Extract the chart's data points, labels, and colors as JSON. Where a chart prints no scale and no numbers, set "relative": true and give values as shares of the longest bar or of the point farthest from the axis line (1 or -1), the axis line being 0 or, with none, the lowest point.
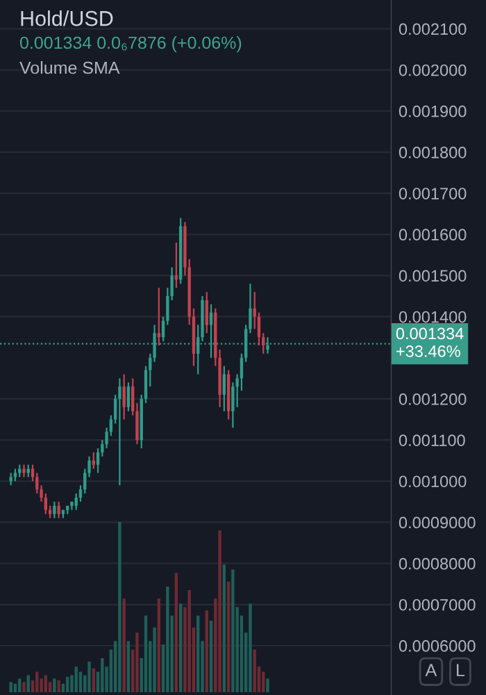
{
  "chart_data": [
    {
      "type": "candlestick",
      "title": "Hold/USD",
      "subtitle": "0.001334 0.0₆7876 (+0.06%)",
      "annotations": [
        "Volume SMA",
        "A",
        "L"
      ],
      "categories": [
        null,
        null,
        null,
        null,
        null,
        null,
        null,
        null,
        null,
        null,
        null,
        null,
        null,
        null,
        null,
        null,
        null,
        null,
        null,
        null,
        null,
        null,
        null,
        null,
        null,
        null,
        null,
        null,
        null,
        null,
        null,
        null,
        null,
        null,
        null,
        null,
        null,
        null,
        null,
        null,
        null,
        null,
        null,
        null,
        null,
        null,
        null,
        null,
        null,
        null,
        null,
        null,
        null,
        null,
        null,
        null,
        null,
        null,
        null,
        null,
        null,
        null,
        null,
        null,
        null,
        null,
        null,
        null,
        null,
        null,
        null,
        null,
        null,
        null,
        null,
        null,
        null,
        null,
        null,
        null,
        null,
        null,
        null,
        null,
        null,
        null,
        null,
        null,
        null,
        null
      ],
      "ohlc": [
        null,
        null,
        [
          0.001,
          0.00102,
          0.00099,
          0.00101
        ],
        [
          0.00101,
          0.00103,
          0.001,
          0.00102
        ],
        [
          0.00102,
          0.00104,
          0.00101,
          0.00103
        ],
        [
          0.00103,
          0.00104,
          0.00101,
          0.00102
        ],
        [
          0.00102,
          0.00104,
          0.00101,
          0.00103
        ],
        [
          0.00103,
          0.00104,
          0.001,
          0.00101
        ],
        [
          0.00101,
          0.00102,
          0.00097,
          0.00098
        ],
        [
          0.00098,
          0.00099,
          0.00095,
          0.00096
        ],
        [
          0.00096,
          0.00097,
          0.00092,
          0.00093
        ],
        [
          0.00093,
          0.00094,
          0.00091,
          0.00092
        ],
        [
          0.00092,
          0.00095,
          0.00091,
          0.00094
        ],
        [
          0.00094,
          0.00095,
          0.00091,
          0.00092
        ],
        [
          0.00092,
          0.00093,
          0.00091,
          0.00093
        ],
        [
          0.00093,
          0.00094,
          0.00092,
          0.00094
        ],
        [
          0.00094,
          0.00095,
          0.00093,
          0.00095
        ],
        [
          0.00094,
          0.00097,
          0.00093,
          0.00096
        ],
        [
          0.00096,
          0.00099,
          0.00095,
          0.00098
        ],
        [
          0.00098,
          0.00103,
          0.00097,
          0.00102
        ],
        [
          0.00102,
          0.00106,
          0.00101,
          0.00105
        ],
        [
          0.00105,
          0.00107,
          0.00103,
          0.00104
        ],
        [
          0.00104,
          0.00108,
          0.00102,
          0.00107
        ],
        [
          0.00107,
          0.0011,
          0.00106,
          0.00109
        ],
        [
          0.00109,
          0.00113,
          0.00108,
          0.00112
        ],
        [
          0.00112,
          0.00116,
          0.00111,
          0.00115
        ],
        [
          0.00115,
          0.00121,
          0.00114,
          0.0012
        ],
        [
          0.0012,
          0.00125,
          0.00099,
          0.00123
        ],
        [
          0.00123,
          0.00126,
          0.00115,
          0.00118
        ],
        [
          0.00118,
          0.00124,
          0.00117,
          0.00123
        ],
        [
          0.00123,
          0.00125,
          0.00116,
          0.00117
        ],
        [
          0.00117,
          0.00119,
          0.00109,
          0.0011
        ],
        [
          0.0011,
          0.00121,
          0.00108,
          0.0012
        ],
        [
          0.0012,
          0.00128,
          0.00119,
          0.00127
        ],
        [
          0.00127,
          0.00131,
          0.00123,
          0.0013
        ],
        [
          0.0013,
          0.00138,
          0.00129,
          0.00136
        ],
        [
          0.00136,
          0.00147,
          0.00133,
          0.00135
        ],
        [
          0.00135,
          0.0014,
          0.00134,
          0.00139
        ],
        [
          0.00139,
          0.00147,
          0.00138,
          0.00145
        ],
        [
          0.00145,
          0.00152,
          0.00144,
          0.0015
        ],
        [
          0.0015,
          0.00158,
          0.00147,
          0.00149
        ],
        [
          0.00149,
          0.00164,
          0.00148,
          0.00162
        ],
        [
          0.00162,
          0.00163,
          0.0015,
          0.00152
        ],
        [
          0.00152,
          0.00154,
          0.00138,
          0.0014
        ],
        [
          0.0014,
          0.00142,
          0.00128,
          0.00131
        ],
        [
          0.00131,
          0.00138,
          0.00126,
          0.00135
        ],
        [
          0.00135,
          0.00145,
          0.00134,
          0.00144
        ],
        [
          0.00144,
          0.00146,
          0.00136,
          0.00138
        ],
        [
          0.00138,
          0.00143,
          0.0013,
          0.00141
        ],
        [
          0.00141,
          0.00142,
          0.00128,
          0.0013
        ],
        [
          0.0013,
          0.00132,
          0.00118,
          0.00121
        ],
        [
          0.00121,
          0.00128,
          0.00117,
          0.00126
        ],
        [
          0.00126,
          0.00127,
          0.00115,
          0.00117
        ],
        [
          0.00117,
          0.00124,
          0.00113,
          0.00123
        ],
        [
          0.00123,
          0.00126,
          0.00118,
          0.00125
        ],
        [
          0.00125,
          0.00131,
          0.00122,
          0.0013
        ],
        [
          0.0013,
          0.00138,
          0.00129,
          0.00137
        ],
        [
          0.00137,
          0.00148,
          0.00136,
          0.00142
        ],
        [
          0.00142,
          0.00146,
          0.00137,
          0.0014
        ],
        [
          0.0014,
          0.00141,
          0.00133,
          0.00135
        ],
        [
          0.00135,
          0.00136,
          0.00131,
          0.00133
        ],
        [
          0.00132,
          0.00135,
          0.00131,
          0.00133
        ],
        null,
        null,
        null,
        null,
        null,
        null,
        null,
        null,
        null,
        null,
        null,
        null,
        null,
        null,
        null,
        null,
        null,
        null,
        null,
        null,
        null,
        null,
        null,
        null,
        null,
        null,
        null,
        null
      ],
      "colors": [
        null,
        null,
        "#2f9c8a",
        "#2f9c8a",
        "#2f9c8a",
        "#c2434f",
        "#2f9c8a",
        "#c2434f",
        "#c2434f",
        "#c2434f",
        "#c2434f",
        "#c2434f",
        "#2f9c8a",
        "#c2434f",
        "#2f9c8a",
        "#2f9c8a",
        "#2f9c8a",
        "#2f9c8a",
        "#2f9c8a",
        "#2f9c8a",
        "#2f9c8a",
        "#c2434f",
        "#2f9c8a",
        "#2f9c8a",
        "#2f9c8a",
        "#2f9c8a",
        "#2f9c8a",
        "#2f9c8a",
        "#c2434f",
        "#2f9c8a",
        "#c2434f",
        "#c2434f",
        "#2f9c8a",
        "#2f9c8a",
        "#2f9c8a",
        "#2f9c8a",
        "#c2434f",
        "#2f9c8a",
        "#2f9c8a",
        "#2f9c8a",
        "#c2434f",
        "#2f9c8a",
        "#c2434f",
        "#c2434f",
        "#c2434f",
        "#2f9c8a",
        "#2f9c8a",
        "#c2434f",
        "#2f9c8a",
        "#c2434f",
        "#c2434f",
        "#2f9c8a",
        "#c2434f",
        "#2f9c8a",
        "#2f9c8a",
        "#2f9c8a",
        "#2f9c8a",
        "#2f9c8a",
        "#c2434f",
        "#c2434f",
        "#c2434f",
        "#2f9c8a",
        null,
        null,
        null,
        null,
        null,
        null,
        null,
        null,
        null,
        null,
        null,
        null,
        null,
        null,
        null,
        null,
        null,
        null,
        null,
        null,
        null,
        null,
        null,
        null,
        null,
        null,
        null,
        null
      ],
      "ylim": [
        0.00048,
        0.00217
      ],
      "yticks": [
        {
          "value": 0.0021,
          "label": "0.002100"
        },
        {
          "value": 0.002,
          "label": "0.002000"
        },
        {
          "value": 0.0019,
          "label": "0.001900"
        },
        {
          "value": 0.0018,
          "label": "0.001800"
        },
        {
          "value": 0.0017,
          "label": "0.001700"
        },
        {
          "value": 0.0016,
          "label": "0.001600"
        },
        {
          "value": 0.0015,
          "label": "0.001500"
        },
        {
          "value": 0.0014,
          "label": "0.001400"
        },
        {
          "value": 0.0012,
          "label": "0.001200"
        },
        {
          "value": 0.0011,
          "label": "0.001100"
        },
        {
          "value": 0.001,
          "label": "0.001000"
        },
        {
          "value": 0.0009,
          "label": "0.0009000"
        },
        {
          "value": 0.0008,
          "label": "0.0008000"
        },
        {
          "value": 0.0007,
          "label": "0.0007000"
        },
        {
          "value": 0.0006,
          "label": "0.0006000"
        }
      ],
      "ref_lines": [
        {
          "axis": "y",
          "value": 0.001334,
          "label": "0.001334\n+33.46%",
          "color": "#3a9c8a",
          "line_style": "dotted"
        }
      ],
      "grid": "y",
      "tick_labels": "y"
    },
    {
      "type": "bar",
      "relative": true,
      "tick_labels": false,
      "categories": [
        null,
        null,
        null,
        null,
        null,
        null,
        null,
        null,
        null,
        null,
        null,
        null,
        null,
        null,
        null,
        null,
        null,
        null,
        null,
        null,
        null,
        null,
        null,
        null,
        null,
        null,
        null,
        null,
        null,
        null,
        null,
        null,
        null,
        null,
        null,
        null,
        null,
        null,
        null,
        null,
        null,
        null,
        null,
        null,
        null,
        null,
        null,
        null,
        null,
        null,
        null,
        null,
        null,
        null,
        null,
        null,
        null,
        null,
        null,
        null,
        null,
        null,
        null,
        null,
        null,
        null,
        null,
        null,
        null,
        null,
        null,
        null,
        null,
        null,
        null,
        null,
        null,
        null,
        null,
        null,
        null,
        null,
        null,
        null,
        null,
        null,
        null,
        null,
        null,
        null
      ],
      "values": [
        null,
        null,
        0.06,
        0.05,
        0.08,
        0.06,
        0.1,
        0.07,
        0.12,
        0.08,
        0.1,
        0.06,
        0.08,
        0.07,
        0.05,
        0.09,
        0.1,
        0.15,
        0.12,
        0.1,
        0.18,
        0.14,
        0.12,
        0.2,
        0.15,
        0.25,
        0.3,
        1.0,
        0.55,
        0.3,
        0.25,
        0.35,
        0.2,
        0.45,
        0.3,
        0.38,
        0.55,
        0.28,
        0.62,
        0.45,
        0.7,
        0.52,
        0.5,
        0.6,
        0.38,
        0.45,
        0.3,
        0.48,
        0.42,
        0.55,
        0.95,
        0.75,
        0.65,
        0.72,
        0.5,
        0.45,
        0.35,
        0.52,
        0.25,
        0.15,
        0.12,
        0.08,
        null,
        null,
        null,
        null,
        null,
        null,
        null,
        null,
        null,
        null,
        null,
        null,
        null,
        null,
        null,
        null,
        null,
        null,
        null,
        null,
        null,
        null,
        null,
        null,
        null,
        null,
        null,
        null
      ],
      "colors": [
        null,
        null,
        "#1f5f58",
        "#1f5f58",
        "#1f5f58",
        "#6e2a33",
        "#1f5f58",
        "#6e2a33",
        "#6e2a33",
        "#6e2a33",
        "#6e2a33",
        "#6e2a33",
        "#1f5f58",
        "#6e2a33",
        "#1f5f58",
        "#1f5f58",
        "#1f5f58",
        "#1f5f58",
        "#1f5f58",
        "#1f5f58",
        "#1f5f58",
        "#6e2a33",
        "#1f5f58",
        "#1f5f58",
        "#1f5f58",
        "#1f5f58",
        "#1f5f58",
        "#1f5f58",
        "#6e2a33",
        "#1f5f58",
        "#6e2a33",
        "#6e2a33",
        "#1f5f58",
        "#1f5f58",
        "#1f5f58",
        "#1f5f58",
        "#6e2a33",
        "#1f5f58",
        "#1f5f58",
        "#1f5f58",
        "#6e2a33",
        "#1f5f58",
        "#6e2a33",
        "#6e2a33",
        "#6e2a33",
        "#1f5f58",
        "#1f5f58",
        "#6e2a33",
        "#1f5f58",
        "#6e2a33",
        "#6e2a33",
        "#1f5f58",
        "#6e2a33",
        "#1f5f58",
        "#1f5f58",
        "#1f5f58",
        "#1f5f58",
        "#1f5f58",
        "#6e2a33",
        "#6e2a33",
        "#6e2a33",
        "#1f5f58",
        null,
        null,
        null,
        null,
        null,
        null,
        null,
        null,
        null,
        null,
        null,
        null,
        null,
        null,
        null,
        null,
        null,
        null,
        null,
        null,
        null,
        null,
        null,
        null,
        null,
        null,
        null,
        null
      ]
    }
  ]
}
